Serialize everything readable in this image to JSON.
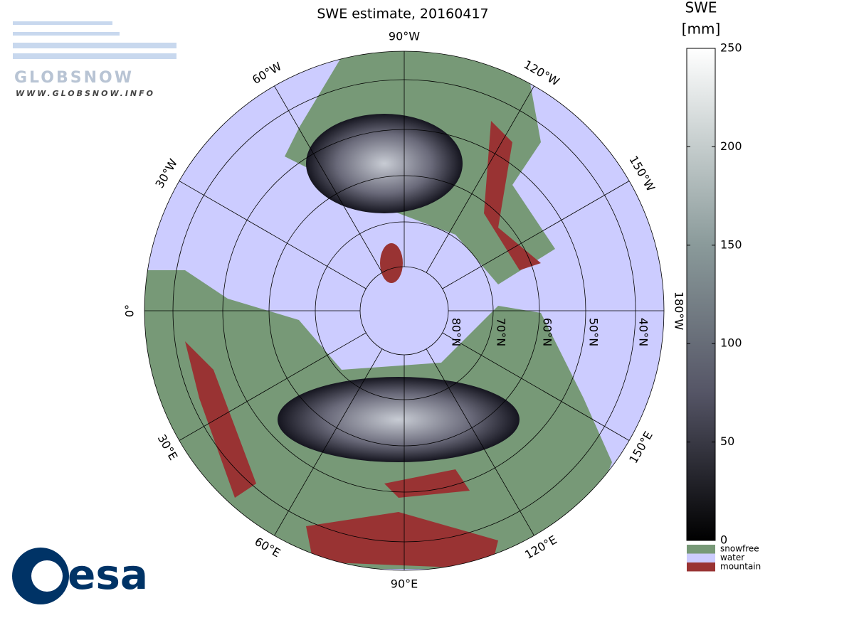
{
  "title": "SWE estimate, 20160417",
  "longitude_labels": [
    "90°W",
    "120°W",
    "150°W",
    "180°W",
    "150°E",
    "120°E",
    "90°E",
    "60°E",
    "30°E",
    "0°",
    "30°W",
    "60°W"
  ],
  "latitude_labels": [
    "80°N",
    "70°N",
    "60°N",
    "50°N",
    "40°N"
  ],
  "colorbar": {
    "title": "SWE",
    "unit": "[mm]",
    "lim": [
      0,
      250
    ],
    "ticks": [
      0,
      50,
      100,
      150,
      200,
      250
    ]
  },
  "legend": [
    {
      "label": "snowfree",
      "color": "#779977"
    },
    {
      "label": "water",
      "color": "#ccccff"
    },
    {
      "label": "mountain",
      "color": "#993333"
    }
  ],
  "logos": {
    "globsnow": "GLOBSNOW",
    "globsnow_url": "WWW.GLOBSNOW.INFO",
    "esa": "esa"
  }
}
